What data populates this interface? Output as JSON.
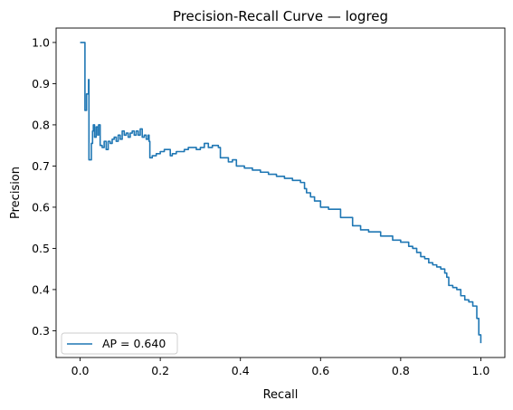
{
  "chart_data": {
    "type": "line",
    "title": "Precision-Recall Curve — logreg",
    "xlabel": "Recall",
    "ylabel": "Precision",
    "xlim": [
      -0.06,
      1.06
    ],
    "ylim": [
      0.235,
      1.035
    ],
    "xticks": [
      0.0,
      0.2,
      0.4,
      0.6,
      0.8,
      1.0
    ],
    "xtick_labels": [
      "0.0",
      "0.2",
      "0.4",
      "0.6",
      "0.8",
      "1.0"
    ],
    "yticks": [
      0.3,
      0.4,
      0.5,
      0.6,
      0.7,
      0.8,
      0.9,
      1.0
    ],
    "ytick_labels": [
      "0.3",
      "0.4",
      "0.5",
      "0.6",
      "0.7",
      "0.8",
      "0.9",
      "1.0"
    ],
    "grid": false,
    "legend_position": "lower-left",
    "series": [
      {
        "name": "AP = 0.640",
        "color": "#1f77b4",
        "x": [
          0.0,
          0.012,
          0.012,
          0.016,
          0.021,
          0.022,
          0.022,
          0.028,
          0.031,
          0.033,
          0.036,
          0.04,
          0.044,
          0.046,
          0.05,
          0.055,
          0.06,
          0.065,
          0.07,
          0.075,
          0.08,
          0.085,
          0.09,
          0.095,
          0.1,
          0.105,
          0.11,
          0.115,
          0.12,
          0.125,
          0.13,
          0.135,
          0.14,
          0.145,
          0.15,
          0.155,
          0.16,
          0.165,
          0.17,
          0.172,
          0.174,
          0.18,
          0.19,
          0.2,
          0.21,
          0.22,
          0.225,
          0.23,
          0.24,
          0.25,
          0.26,
          0.27,
          0.28,
          0.29,
          0.3,
          0.31,
          0.32,
          0.33,
          0.34,
          0.345,
          0.35,
          0.36,
          0.37,
          0.38,
          0.39,
          0.4,
          0.41,
          0.42,
          0.43,
          0.45,
          0.47,
          0.49,
          0.51,
          0.53,
          0.55,
          0.56,
          0.565,
          0.575,
          0.585,
          0.6,
          0.62,
          0.65,
          0.68,
          0.7,
          0.72,
          0.75,
          0.78,
          0.8,
          0.82,
          0.83,
          0.84,
          0.85,
          0.86,
          0.87,
          0.88,
          0.89,
          0.9,
          0.91,
          0.915,
          0.92,
          0.925,
          0.93,
          0.94,
          0.95,
          0.96,
          0.97,
          0.98,
          0.99,
          0.995,
          1.0
        ],
        "y": [
          1.0,
          1.0,
          0.835,
          0.875,
          0.91,
          0.875,
          0.715,
          0.755,
          0.785,
          0.8,
          0.77,
          0.795,
          0.775,
          0.8,
          0.75,
          0.745,
          0.76,
          0.74,
          0.76,
          0.755,
          0.765,
          0.77,
          0.76,
          0.775,
          0.765,
          0.785,
          0.775,
          0.78,
          0.77,
          0.78,
          0.785,
          0.775,
          0.785,
          0.775,
          0.79,
          0.77,
          0.775,
          0.765,
          0.775,
          0.76,
          0.72,
          0.725,
          0.73,
          0.735,
          0.74,
          0.74,
          0.725,
          0.73,
          0.735,
          0.735,
          0.74,
          0.745,
          0.745,
          0.74,
          0.745,
          0.755,
          0.745,
          0.75,
          0.75,
          0.745,
          0.72,
          0.72,
          0.71,
          0.715,
          0.7,
          0.7,
          0.695,
          0.695,
          0.69,
          0.685,
          0.68,
          0.675,
          0.67,
          0.665,
          0.66,
          0.645,
          0.635,
          0.625,
          0.615,
          0.6,
          0.595,
          0.575,
          0.555,
          0.545,
          0.54,
          0.53,
          0.52,
          0.515,
          0.505,
          0.5,
          0.49,
          0.48,
          0.475,
          0.465,
          0.46,
          0.455,
          0.45,
          0.44,
          0.43,
          0.41,
          0.41,
          0.405,
          0.4,
          0.385,
          0.375,
          0.37,
          0.36,
          0.33,
          0.29,
          0.27
        ]
      }
    ]
  }
}
